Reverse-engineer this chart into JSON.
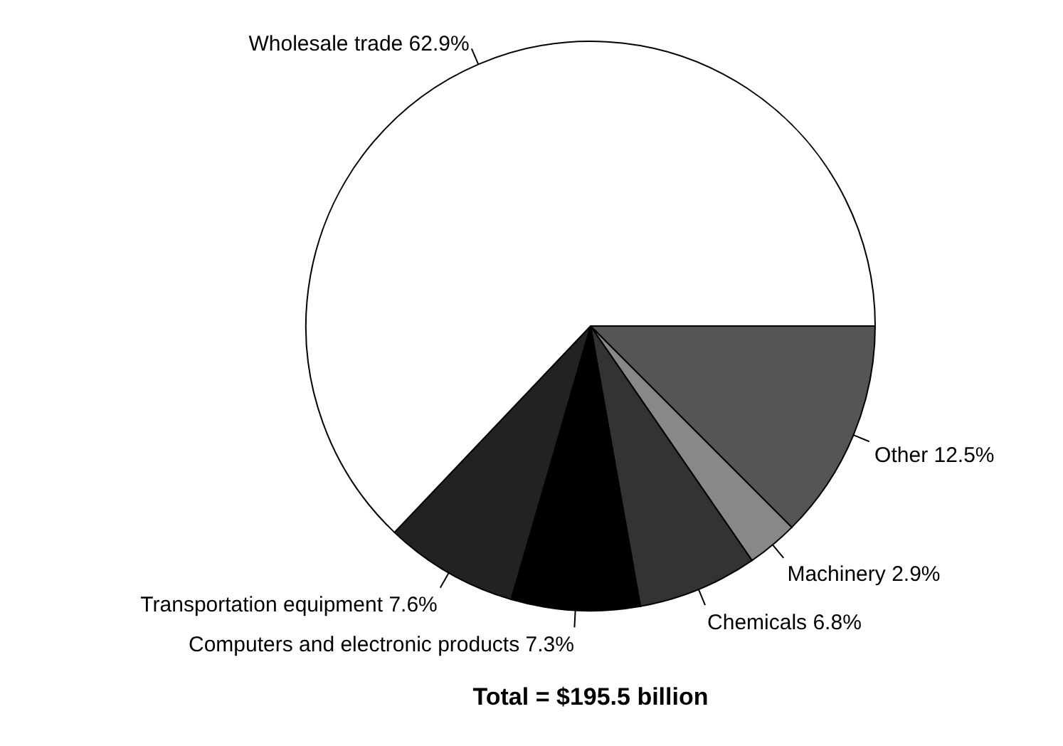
{
  "chart_data": {
    "type": "pie",
    "title": "Total = $195.5 billion",
    "categories": [
      "Other",
      "Machinery",
      "Chemicals",
      "Computers and electronic products",
      "Transportation equipment",
      "Wholesale trade"
    ],
    "values": [
      12.5,
      2.9,
      6.8,
      7.3,
      7.6,
      62.9
    ],
    "colors": [
      "#555555",
      "#888888",
      "#333333",
      "#000000",
      "#222222",
      "#ffffff"
    ],
    "value_labels": [
      "12.5%",
      "2.9%",
      "6.8%",
      "7.3%",
      "7.6%",
      "62.9%"
    ]
  }
}
